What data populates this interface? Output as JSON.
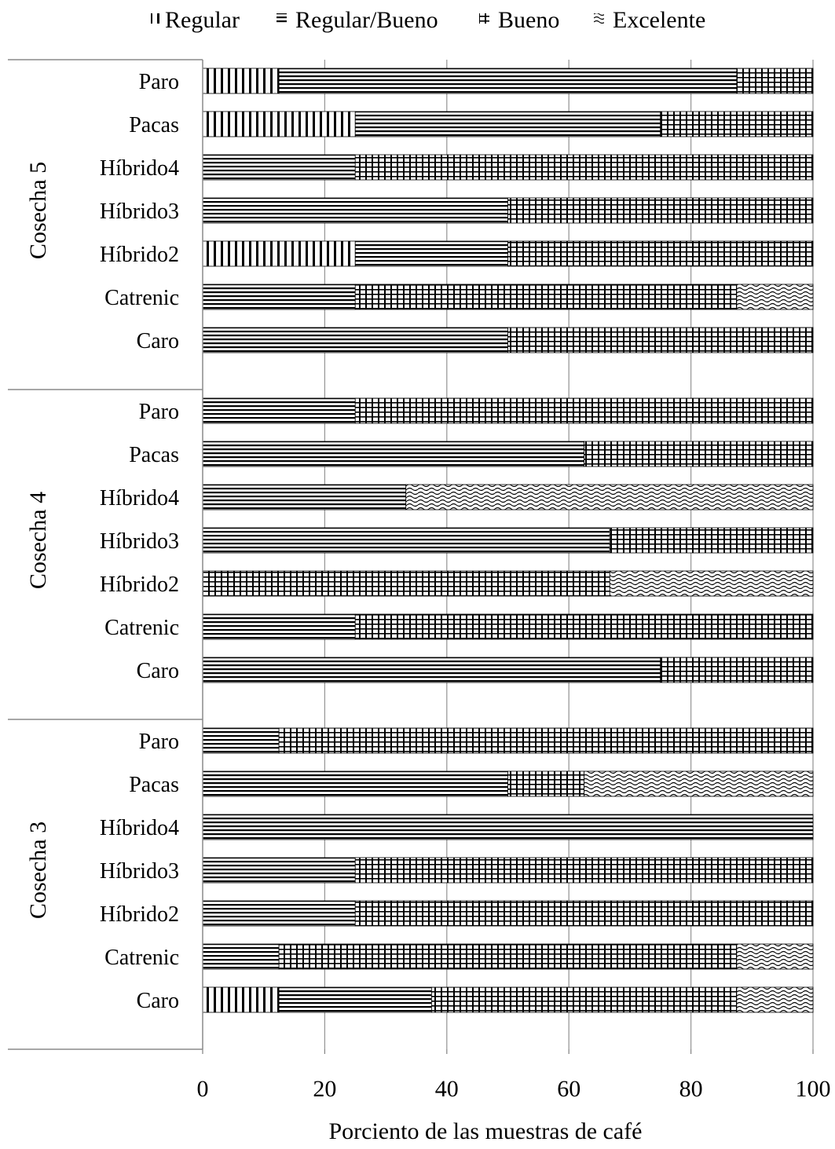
{
  "chart_data": {
    "type": "bar",
    "orientation": "horizontal",
    "stacked": true,
    "xlabel": "Porciento de las muestras de café",
    "xlim": [
      0,
      100
    ],
    "xticks": [
      0,
      20,
      40,
      60,
      80,
      100
    ],
    "legend_position": "top",
    "grid": "vertical",
    "series": [
      {
        "name": "Regular",
        "key": "regular"
      },
      {
        "name": "Regular/Bueno",
        "key": "regbueno"
      },
      {
        "name": "Bueno",
        "key": "bueno"
      },
      {
        "name": "Excelente",
        "key": "excelente"
      }
    ],
    "groups": [
      {
        "label": "Cosecha 5",
        "bars": [
          {
            "category": "Paro",
            "values": [
              12.5,
              75,
              12.5,
              0
            ]
          },
          {
            "category": "Pacas",
            "values": [
              25,
              50,
              25,
              0
            ]
          },
          {
            "category": "Híbrido4",
            "values": [
              0,
              25,
              75,
              0
            ]
          },
          {
            "category": "Híbrido3",
            "values": [
              0,
              50,
              50,
              0
            ]
          },
          {
            "category": "Híbrido2",
            "values": [
              25,
              25,
              50,
              0
            ]
          },
          {
            "category": "Catrenic",
            "values": [
              0,
              25,
              62.5,
              12.5
            ]
          },
          {
            "category": "Caro",
            "values": [
              0,
              50,
              50,
              0
            ]
          }
        ]
      },
      {
        "label": "Cosecha 4",
        "bars": [
          {
            "category": "Paro",
            "values": [
              0,
              25,
              75,
              0
            ]
          },
          {
            "category": "Pacas",
            "values": [
              0,
              62.5,
              37.5,
              0
            ]
          },
          {
            "category": "Híbrido4",
            "values": [
              0,
              33.3,
              0,
              66.7
            ]
          },
          {
            "category": "Híbrido3",
            "values": [
              0,
              66.7,
              33.3,
              0
            ]
          },
          {
            "category": "Híbrido2",
            "values": [
              0,
              0,
              66.7,
              33.3
            ]
          },
          {
            "category": "Catrenic",
            "values": [
              0,
              25,
              75,
              0
            ]
          },
          {
            "category": "Caro",
            "values": [
              0,
              75,
              25,
              0
            ]
          }
        ]
      },
      {
        "label": "Cosecha 3",
        "bars": [
          {
            "category": "Paro",
            "values": [
              0,
              12.5,
              87.5,
              0
            ]
          },
          {
            "category": "Pacas",
            "values": [
              0,
              50,
              12.5,
              37.5
            ]
          },
          {
            "category": "Híbrido4",
            "values": [
              0,
              100,
              0,
              0
            ]
          },
          {
            "category": "Híbrido3",
            "values": [
              0,
              25,
              75,
              0
            ]
          },
          {
            "category": "Híbrido2",
            "values": [
              0,
              25,
              75,
              0
            ]
          },
          {
            "category": "Catrenic",
            "values": [
              0,
              12.5,
              75,
              12.5
            ]
          },
          {
            "category": "Caro",
            "values": [
              12.5,
              25,
              50,
              12.5
            ]
          }
        ]
      }
    ]
  }
}
